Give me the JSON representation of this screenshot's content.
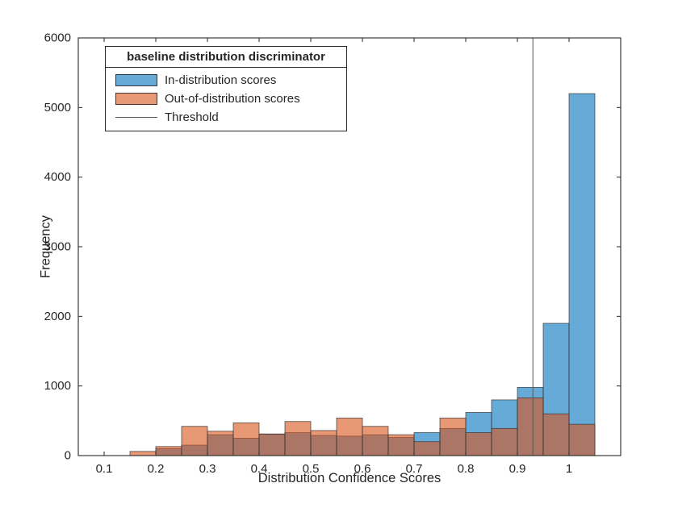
{
  "chart_data": {
    "type": "bar",
    "subtype": "overlaid-histogram",
    "title": "",
    "xlabel": "Distribution Confidence Scores",
    "ylabel": "Frequency",
    "xlim": [
      0.05,
      1.1
    ],
    "ylim": [
      0,
      6000
    ],
    "xticks": [
      0.1,
      0.2,
      0.3,
      0.4,
      0.5,
      0.6,
      0.7,
      0.8,
      0.9,
      1.0
    ],
    "xtick_labels": [
      "0.1",
      "0.2",
      "0.3",
      "0.4",
      "0.5",
      "0.6",
      "0.7",
      "0.8",
      "0.9",
      "1"
    ],
    "yticks": [
      0,
      1000,
      2000,
      3000,
      4000,
      5000,
      6000
    ],
    "ytick_labels": [
      "0",
      "1000",
      "2000",
      "3000",
      "4000",
      "5000",
      "6000"
    ],
    "bin_start": 0.15,
    "bin_width": 0.05,
    "bin_edges": [
      0.15,
      0.2,
      0.25,
      0.3,
      0.35,
      0.4,
      0.45,
      0.5,
      0.55,
      0.6,
      0.65,
      0.7,
      0.75,
      0.8,
      0.85,
      0.9,
      0.95,
      1.0,
      1.05
    ],
    "series": [
      {
        "name": "In-distribution scores",
        "color": "#0072BD",
        "alpha": 0.6,
        "values": [
          0,
          100,
          150,
          300,
          250,
          310,
          330,
          290,
          280,
          300,
          260,
          330,
          390,
          620,
          800,
          980,
          1900,
          5200
        ]
      },
      {
        "name": "Out-of-distribution scores",
        "color": "#D95319",
        "alpha": 0.6,
        "values": [
          60,
          130,
          420,
          350,
          470,
          310,
          490,
          360,
          540,
          420,
          300,
          200,
          540,
          330,
          390,
          830,
          600,
          450
        ]
      }
    ],
    "threshold": {
      "label": "Threshold",
      "x": 0.93,
      "color": "#545454"
    },
    "legend": {
      "position": "northwest",
      "title": "baseline distribution discriminator",
      "entries": [
        "In-distribution scores",
        "Out-of-distribution scores",
        "Threshold"
      ]
    },
    "grid": false,
    "legend_position": "top-left"
  }
}
